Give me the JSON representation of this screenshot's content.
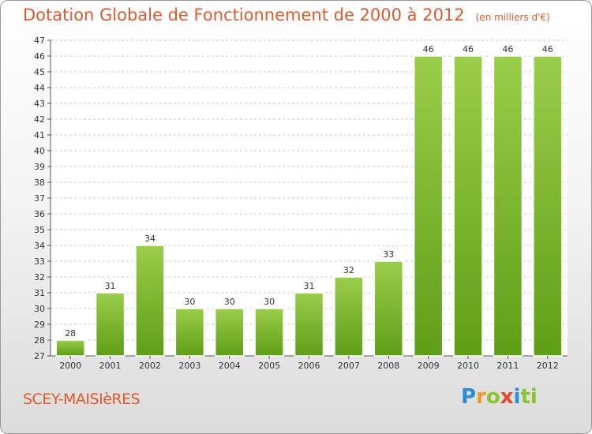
{
  "title": "Dotation Globale de Fonctionnement de 2000 à 2012",
  "unit": "(en milliers d'€)",
  "city": "SCEY-MAISIèRES",
  "logo": {
    "text": "Proxiti",
    "letters": [
      "P",
      "r",
      "o",
      "x",
      "i",
      "t",
      "i"
    ]
  },
  "colors": {
    "title": "#e0592b",
    "bar_top": "#9acd4a",
    "bar_bottom": "#5f9e18",
    "grid": "#c8c8c8"
  },
  "chart_data": {
    "type": "bar",
    "title": "Dotation Globale de Fonctionnement de 2000 à 2012",
    "subtitle": "(en milliers d'€)",
    "categories": [
      "2000",
      "2001",
      "2002",
      "2003",
      "2004",
      "2005",
      "2006",
      "2007",
      "2008",
      "2009",
      "2010",
      "2011",
      "2012"
    ],
    "values": [
      28,
      31,
      34,
      30,
      30,
      30,
      31,
      32,
      33,
      46,
      46,
      46,
      46
    ],
    "ylim": [
      27,
      47
    ],
    "yticks": [
      27,
      28,
      29,
      30,
      31,
      32,
      33,
      34,
      35,
      36,
      37,
      38,
      39,
      40,
      41,
      42,
      43,
      44,
      45,
      46,
      47
    ],
    "grid": true,
    "data_labels": true
  }
}
